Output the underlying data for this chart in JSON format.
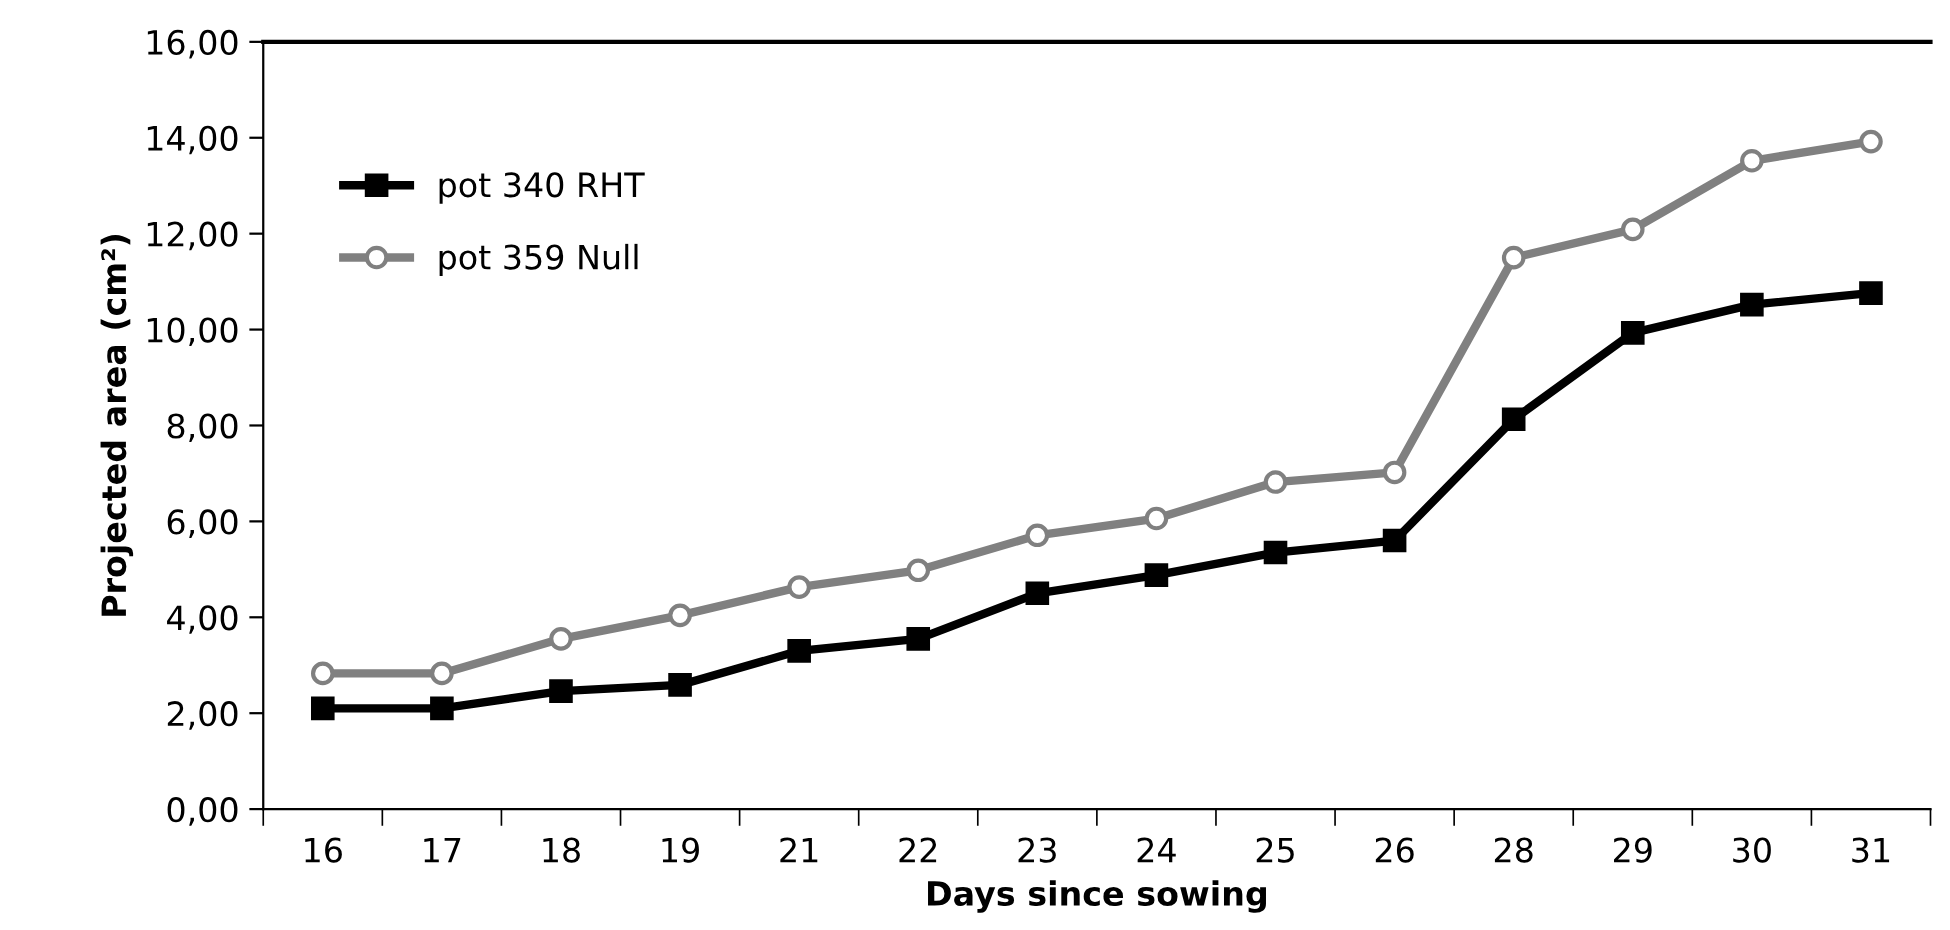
{
  "chart_data": {
    "type": "line",
    "xlabel": "Days since sowing",
    "ylabel": "Projected area (cm²)",
    "categories": [
      "16",
      "17",
      "18",
      "19",
      "21",
      "22",
      "23",
      "24",
      "25",
      "26",
      "28",
      "29",
      "30",
      "31"
    ],
    "series": [
      {
        "name": "pot 340 RHT",
        "color": "#000000",
        "marker": "square",
        "values": [
          2.1,
          2.1,
          2.46,
          2.59,
          3.3,
          3.55,
          4.5,
          4.88,
          5.35,
          5.6,
          8.13,
          9.93,
          10.52,
          10.76
        ]
      },
      {
        "name": "pot 359 Null",
        "color": "#808080",
        "marker": "circle",
        "values": [
          2.83,
          2.83,
          3.55,
          4.04,
          4.63,
          4.98,
          5.71,
          6.06,
          6.82,
          7.02,
          11.5,
          12.09,
          13.52,
          13.92
        ]
      }
    ],
    "ylim": [
      0,
      16
    ],
    "yticks": [
      {
        "value": 0,
        "label": "0,00"
      },
      {
        "value": 2,
        "label": "2,00"
      },
      {
        "value": 4,
        "label": "4,00"
      },
      {
        "value": 6,
        "label": "6,00"
      },
      {
        "value": 8,
        "label": "8,00"
      },
      {
        "value": 10,
        "label": "10,00"
      },
      {
        "value": 12,
        "label": "12,00"
      },
      {
        "value": 14,
        "label": "14,00"
      },
      {
        "value": 16,
        "label": "16,00"
      }
    ],
    "grid": false,
    "legend": "top left",
    "line_style": "solid"
  }
}
